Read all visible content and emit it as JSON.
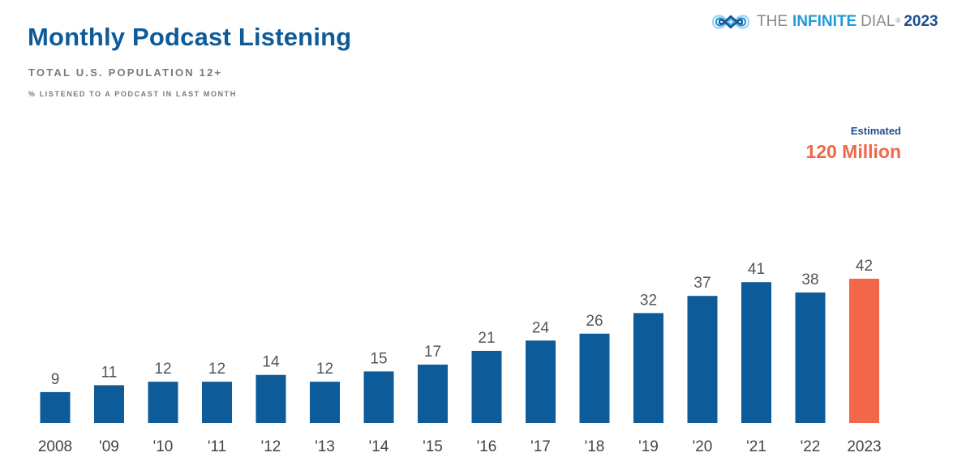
{
  "header": {
    "title": "Monthly Podcast Listening",
    "subtitle": "TOTAL U.S. POPULATION 12+",
    "note": "% LISTENED TO A PODCAST IN LAST MONTH"
  },
  "brand": {
    "icon": "infinity-logo-icon",
    "the": "THE",
    "infinite": "INFINITE",
    "dial": "DIAL",
    "registered": "®",
    "year": "2023"
  },
  "estimate": {
    "label": "Estimated",
    "value": "120 Million"
  },
  "colors": {
    "bar": "#0e5b9a",
    "highlight": "#f26649",
    "title": "#0e5b9a"
  },
  "chart_data": {
    "type": "bar",
    "categories": [
      "2008",
      "'09",
      "'10",
      "'11",
      "'12",
      "'13",
      "'14",
      "'15",
      "'16",
      "'17",
      "'18",
      "'19",
      "'20",
      "'21",
      "'22",
      "2023"
    ],
    "values": [
      9,
      11,
      12,
      12,
      14,
      12,
      15,
      17,
      21,
      24,
      26,
      32,
      37,
      41,
      38,
      42
    ],
    "highlight_index": 15,
    "title": "Monthly Podcast Listening",
    "xlabel": "",
    "ylabel": "",
    "grid": false,
    "legend": "none",
    "data_labels": true
  }
}
